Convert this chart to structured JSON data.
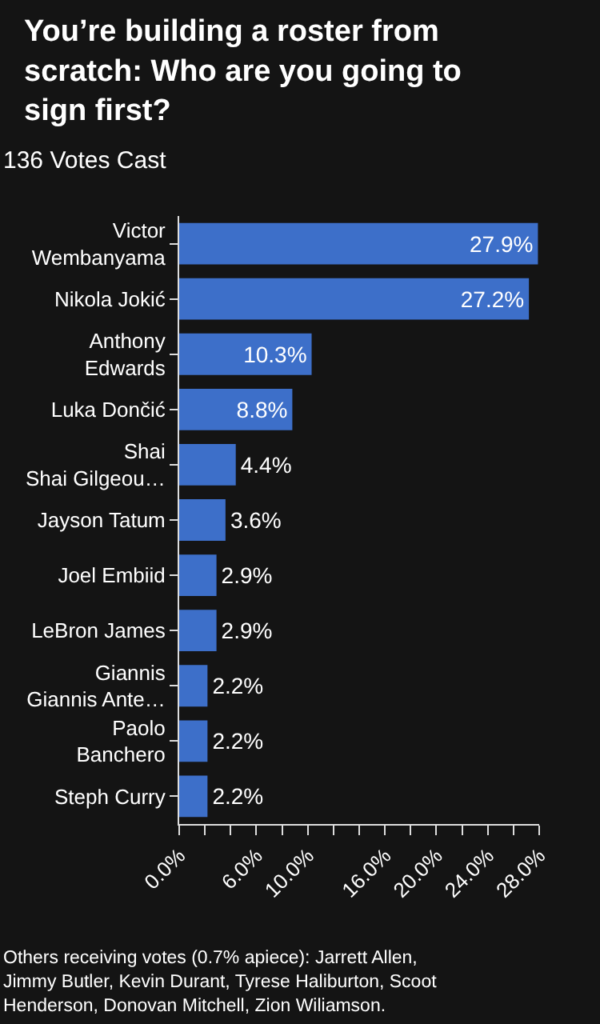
{
  "chart_data": {
    "type": "bar",
    "orientation": "horizontal",
    "title": "You’re building a roster from scratch: Who are you going to sign first?",
    "subtitle": "136 Votes Cast",
    "categories": [
      "Victor\nWembanyama",
      "Nikola Jokić",
      "Anthony\nEdwards",
      "Luka Dončić",
      "Shai\nShai Gilgeou…",
      "Jayson Tatum",
      "Joel Embiid",
      "LeBron James",
      "Giannis\nGiannis Ante…",
      "Paolo\nBanchero",
      "Steph Curry"
    ],
    "values": [
      27.9,
      27.2,
      10.3,
      8.8,
      4.4,
      3.6,
      2.9,
      2.9,
      2.2,
      2.2,
      2.2
    ],
    "value_labels": [
      "27.9%",
      "27.2%",
      "10.3%",
      "8.8%",
      "4.4%",
      "3.6%",
      "2.9%",
      "2.9%",
      "2.2%",
      "2.2%",
      "2.2%"
    ],
    "color": "#3d6fc9",
    "xlim": [
      0,
      28
    ],
    "xticks": [
      {
        "value": 0,
        "label": "0.0%"
      },
      {
        "value": 2,
        "label": null
      },
      {
        "value": 4,
        "label": null
      },
      {
        "value": 6,
        "label": "6.0%"
      },
      {
        "value": 8,
        "label": null
      },
      {
        "value": 10,
        "label": "10.0%"
      },
      {
        "value": 12,
        "label": null
      },
      {
        "value": 14,
        "label": null
      },
      {
        "value": 16,
        "label": "16.0%"
      },
      {
        "value": 18,
        "label": null
      },
      {
        "value": 20,
        "label": "20.0%"
      },
      {
        "value": 22,
        "label": null
      },
      {
        "value": 24,
        "label": "24.0%"
      },
      {
        "value": 26,
        "label": null
      },
      {
        "value": 28,
        "label": "28.0%"
      }
    ],
    "grid": false,
    "legend": false,
    "annotations": [
      "Others receiving votes (0.7% apiece): Jarrett Allen, Jimmy Butler, Kevin Durant, Tyrese Haliburton, Scoot Henderson, Donovan Mitchell, Zion Wiliamson."
    ]
  }
}
